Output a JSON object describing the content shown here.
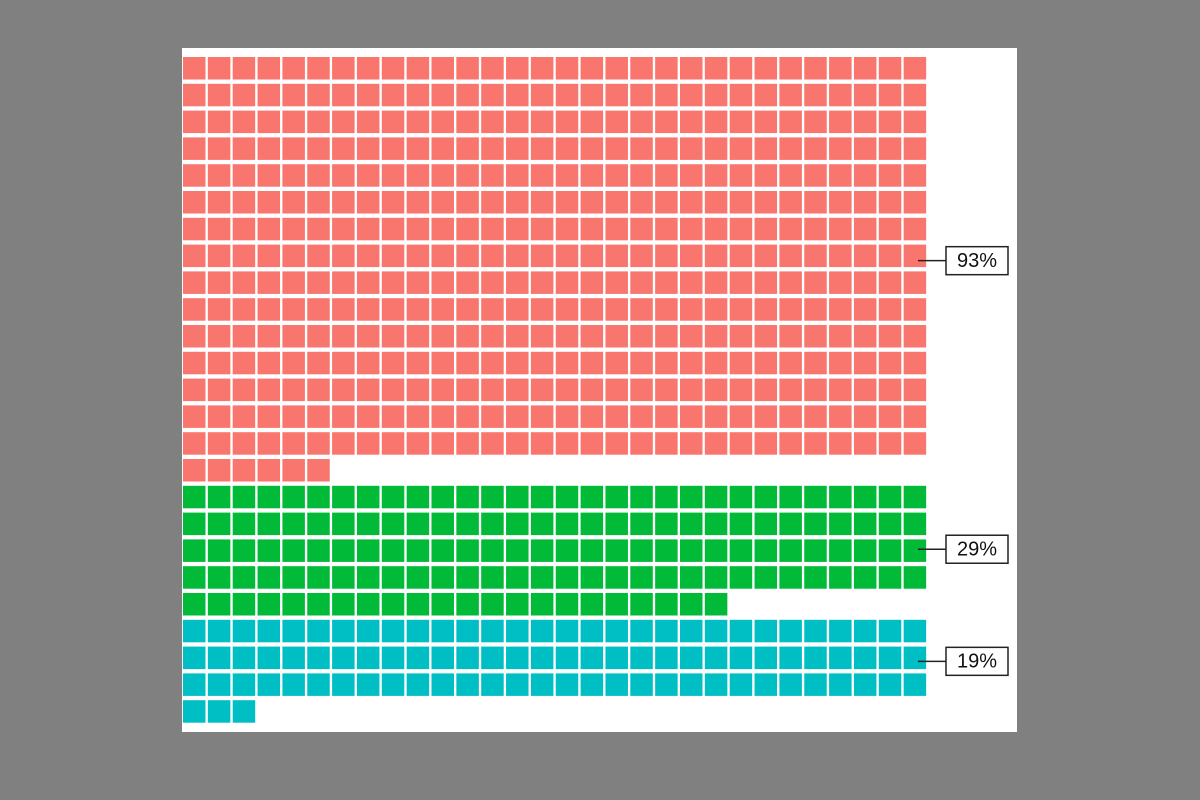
{
  "chart_data": {
    "type": "waffle",
    "values": [
      93,
      29,
      19
    ],
    "value_labels": [
      "93%",
      "29%",
      "19%"
    ],
    "colors": [
      "#f8766d",
      "#00ba38",
      "#00bfc4"
    ]
  }
}
